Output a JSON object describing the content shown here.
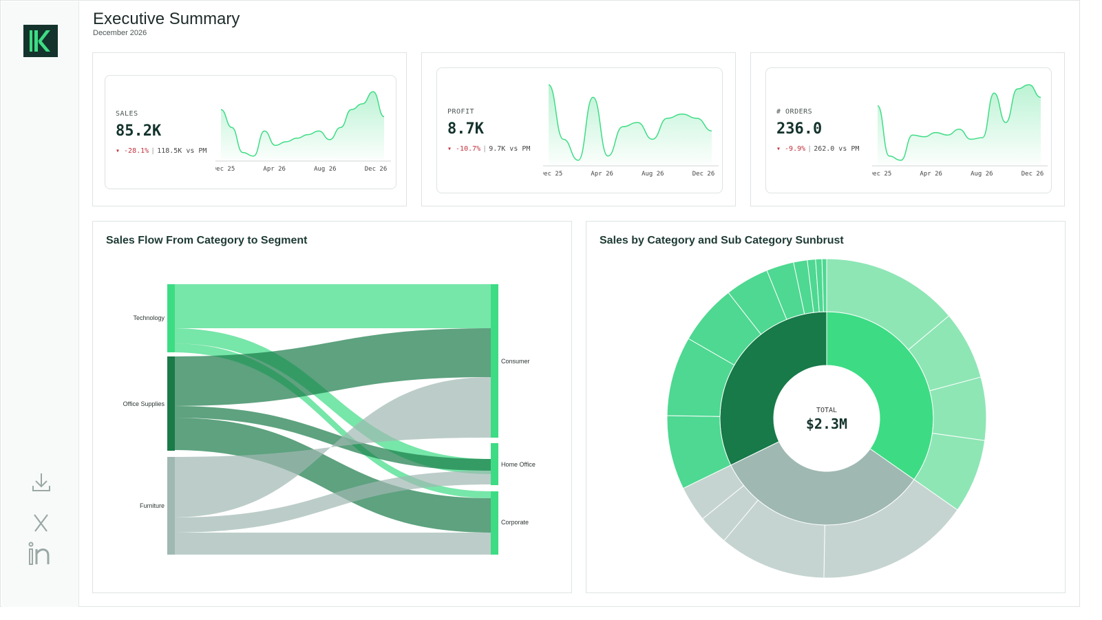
{
  "header": {
    "title": "Executive Summary",
    "subtitle": "December 2026"
  },
  "sidebar": {
    "logo": "K",
    "icons": [
      "download-icon",
      "x-twitter-icon",
      "linkedin-icon"
    ]
  },
  "colors": {
    "accent": "#3ddc84",
    "dark": "#14332c",
    "grey": "#9fb8b2"
  },
  "kpis": [
    {
      "label": "SALES",
      "value": "85.2K",
      "delta": "▾ -28.1%",
      "prior": "118.5K vs PM",
      "ticks": [
        "Dec 25",
        "Apr 26",
        "Aug 26",
        "Dec 26"
      ],
      "trend": [
        0.7,
        0.45,
        0.1,
        0.05,
        0.4,
        0.2,
        0.25,
        0.3,
        0.35,
        0.4,
        0.28,
        0.45,
        0.7,
        0.78,
        0.95,
        0.6
      ]
    },
    {
      "label": "PROFIT",
      "value": "8.7K",
      "delta": "▾ -10.7%",
      "prior": "9.7K vs PM",
      "ticks": [
        "Dec 25",
        "Apr 26",
        "Aug 26",
        "Dec 26"
      ],
      "trend": [
        0.95,
        0.3,
        0.05,
        0.8,
        0.1,
        0.45,
        0.5,
        0.3,
        0.55,
        0.6,
        0.55,
        0.4
      ]
    },
    {
      "label": "# ORDERS",
      "value": "236.0",
      "delta": "▾ -9.9%",
      "prior": "262.0 vs PM",
      "ticks": [
        "Dec 25",
        "Apr 26",
        "Aug 26",
        "Dec 26"
      ],
      "trend": [
        0.7,
        0.1,
        0.05,
        0.35,
        0.33,
        0.38,
        0.35,
        0.42,
        0.3,
        0.32,
        0.85,
        0.5,
        0.9,
        0.95,
        0.8
      ]
    }
  ],
  "sankey": {
    "title": "Sales Flow From Category to Segment",
    "sources": [
      "Technology",
      "Office Supplies",
      "Furniture"
    ],
    "targets": [
      "Consumer",
      "Home Office",
      "Corporate"
    ]
  },
  "sunburst": {
    "title": "Sales by Category and Sub Category Sunbrust",
    "center_label": "TOTAL",
    "center_value": "$2.3M"
  }
}
